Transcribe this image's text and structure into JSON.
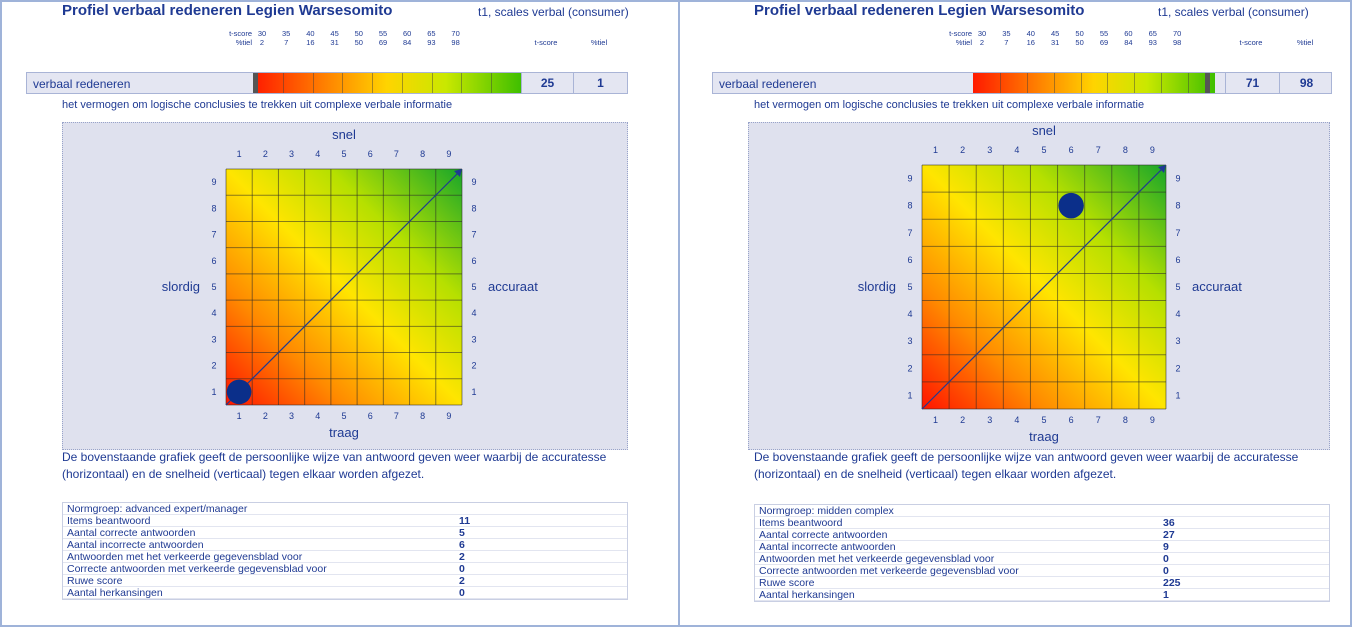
{
  "panels": [
    {
      "title": "Profiel verbaal redeneren Legien Warsesomito",
      "subtitle": "t1, scales verbal (consumer)",
      "scale_header": {
        "tscore_label": "t-score",
        "pct_label": "%tiel",
        "tscores": [
          "30",
          "35",
          "40",
          "45",
          "50",
          "55",
          "60",
          "65",
          "70"
        ],
        "percentiles": [
          "2",
          "7",
          "16",
          "31",
          "50",
          "69",
          "84",
          "93",
          "98"
        ],
        "col_tscore": "t-score",
        "col_pct": "%tiel"
      },
      "scale_name": "verbaal redeneren",
      "tscore": "25",
      "percentile": "1",
      "description": "het vermogen om logische conclusies te trekken uit complexe verbale informatie",
      "chart": {
        "top": "snel",
        "bottom": "traag",
        "left": "slordig",
        "right": "accuraat",
        "ticks": [
          "1",
          "2",
          "3",
          "4",
          "5",
          "6",
          "7",
          "8",
          "9"
        ]
      },
      "explanation": "De bovenstaande grafiek geeft de persoonlijke wijze van antwoord geven weer waarbij de accuratesse (horizontaal) en de snelheid (verticaal) tegen elkaar worden afgezet.",
      "norm": "Normgroep: advanced expert/manager",
      "stats": [
        {
          "label": "Items beantwoord",
          "value": "11"
        },
        {
          "label": "Aantal correcte antwoorden",
          "value": "5"
        },
        {
          "label": "Aantal incorrecte antwoorden",
          "value": "6"
        },
        {
          "label": "Antwoorden met het verkeerde gegevensblad voor",
          "value": "2"
        },
        {
          "label": "Correcte antwoorden met verkeerde gegevensblad voor",
          "value": "0"
        },
        {
          "label": "Ruwe score",
          "value": "2"
        },
        {
          "label": "Aantal herkansingen",
          "value": "0"
        }
      ]
    },
    {
      "title": "Profiel verbaal redeneren Legien Warsesomito",
      "subtitle": "t1, scales verbal (consumer)",
      "scale_header": {
        "tscore_label": "t-score",
        "pct_label": "%tiel",
        "tscores": [
          "30",
          "35",
          "40",
          "45",
          "50",
          "55",
          "60",
          "65",
          "70"
        ],
        "percentiles": [
          "2",
          "7",
          "16",
          "31",
          "50",
          "69",
          "84",
          "93",
          "98"
        ],
        "col_tscore": "t-score",
        "col_pct": "%tiel"
      },
      "scale_name": "verbaal redeneren",
      "tscore": "71",
      "percentile": "98",
      "description": "het vermogen om logische conclusies te trekken uit complexe verbale informatie",
      "chart": {
        "top": "snel",
        "bottom": "traag",
        "left": "slordig",
        "right": "accuraat",
        "ticks": [
          "1",
          "2",
          "3",
          "4",
          "5",
          "6",
          "7",
          "8",
          "9"
        ]
      },
      "explanation": "De bovenstaande grafiek geeft de persoonlijke wijze van antwoord geven weer waarbij de accuratesse (horizontaal) en de snelheid (verticaal) tegen elkaar worden afgezet.",
      "norm": "Normgroep: midden complex",
      "stats": [
        {
          "label": "Items beantwoord",
          "value": "36"
        },
        {
          "label": "Aantal correcte antwoorden",
          "value": "27"
        },
        {
          "label": "Aantal incorrecte antwoorden",
          "value": "9"
        },
        {
          "label": "Antwoorden met het verkeerde gegevensblad voor",
          "value": "0"
        },
        {
          "label": "Correcte antwoorden met verkeerde gegevensblad voor",
          "value": "0"
        },
        {
          "label": "Ruwe score",
          "value": "225"
        },
        {
          "label": "Aantal herkansingen",
          "value": "1"
        }
      ]
    }
  ],
  "chart_data": [
    {
      "type": "scatter",
      "x": [
        1
      ],
      "y": [
        1
      ],
      "xlim": [
        1,
        9
      ],
      "ylim": [
        1,
        9
      ],
      "xlabel": "traag",
      "ylabel": "slordig",
      "marker_tscore": 25,
      "grid": true
    },
    {
      "type": "scatter",
      "x": [
        6
      ],
      "y": [
        8
      ],
      "xlim": [
        1,
        9
      ],
      "ylim": [
        1,
        9
      ],
      "xlabel": "traag",
      "ylabel": "slordig",
      "marker_tscore": 71,
      "grid": true
    }
  ]
}
